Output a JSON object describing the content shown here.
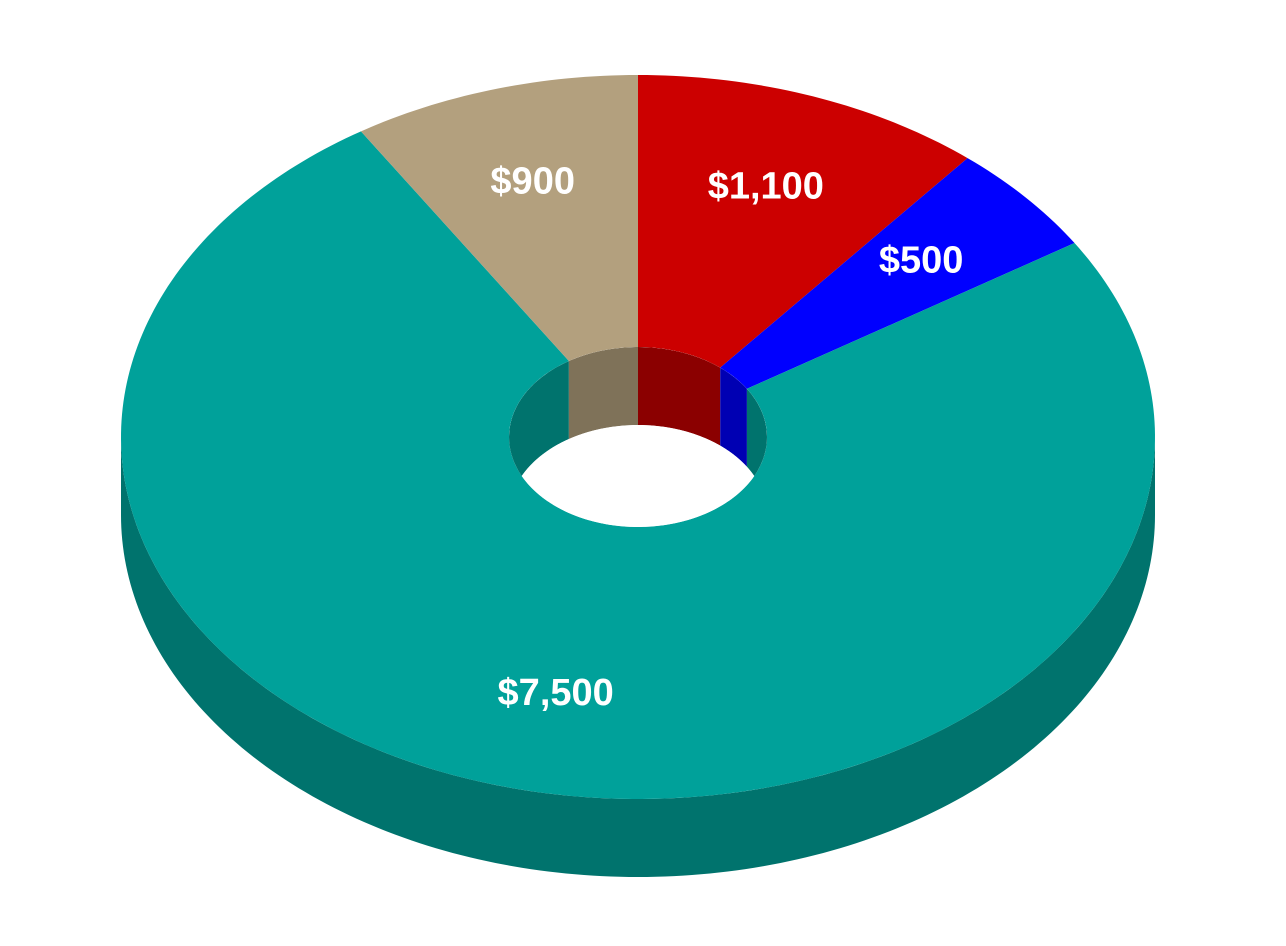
{
  "chart_data": {
    "type": "donut3d",
    "values": [
      1100,
      500,
      7500,
      900
    ],
    "value_labels": [
      "$1,100",
      "$500",
      "$7,500",
      "$900"
    ],
    "colors": [
      "#cc0000",
      "#0000ff",
      "#00a19a",
      "#b3a07e"
    ],
    "side_colors": [
      "#8b0000",
      "#0000b3",
      "#00736d",
      "#7f7259"
    ],
    "label_color": "#ffffff"
  }
}
